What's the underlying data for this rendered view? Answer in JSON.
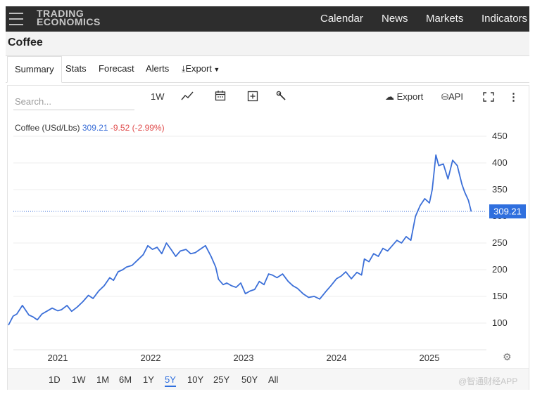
{
  "header": {
    "logo_line1": "TRADING",
    "logo_line2": "ECONOMICS",
    "nav": [
      "Calendar",
      "News",
      "Markets",
      "Indicators"
    ]
  },
  "page_title": "Coffee",
  "tabs": {
    "summary": "Summary",
    "stats": "Stats",
    "forecast": "Forecast",
    "alerts": "Alerts",
    "export": "Export"
  },
  "toolbar": {
    "search_placeholder": "Search...",
    "interval": "1W",
    "export": "Export",
    "api": "API"
  },
  "legend": {
    "name": "Coffee (USd/Lbs)",
    "price": "309.21",
    "change": "-9.52 (-2.99%)"
  },
  "ranges": [
    "1D",
    "1W",
    "1M",
    "6M",
    "1Y",
    "5Y",
    "10Y",
    "25Y",
    "50Y",
    "All"
  ],
  "active_range": "5Y",
  "watermark": "@智通财经APP",
  "colors": {
    "line": "#3b6fd8",
    "last_price_bg": "#2f6fde",
    "negative": "#e04b4b"
  },
  "chart_data": {
    "type": "line",
    "title": "Coffee (USd/Lbs)",
    "xlabel": "",
    "ylabel": "",
    "ylim": [
      50,
      470
    ],
    "y_ticks": [
      100,
      150,
      200,
      250,
      300,
      350,
      400,
      450
    ],
    "x_ticks": [
      "2021",
      "2022",
      "2023",
      "2024",
      "2025"
    ],
    "last_value": 309.21,
    "grid": true,
    "series": [
      {
        "x": [
          2020.47,
          2020.52,
          2020.56,
          2020.62,
          2020.69,
          2020.73,
          2020.78,
          2020.83,
          2020.88,
          2020.94,
          2021.0,
          2021.04,
          2021.1,
          2021.15,
          2021.21,
          2021.27,
          2021.33,
          2021.38,
          2021.44,
          2021.5,
          2021.56,
          2021.6,
          2021.65,
          2021.7,
          2021.74,
          2021.8,
          2021.86,
          2021.92,
          2021.97,
          2022.02,
          2022.07,
          2022.12,
          2022.17,
          2022.22,
          2022.27,
          2022.32,
          2022.38,
          2022.43,
          2022.48,
          2022.53,
          2022.59,
          2022.65,
          2022.7,
          2022.73,
          2022.78,
          2022.82,
          2022.87,
          2022.92,
          2022.97,
          2023.02,
          2023.07,
          2023.12,
          2023.17,
          2023.22,
          2023.27,
          2023.31,
          2023.36,
          2023.42,
          2023.48,
          2023.53,
          2023.58,
          2023.64,
          2023.7,
          2023.76,
          2023.82,
          2023.88,
          2023.94,
          2024.0,
          2024.05,
          2024.1,
          2024.16,
          2024.22,
          2024.27,
          2024.3,
          2024.35,
          2024.4,
          2024.45,
          2024.5,
          2024.55,
          2024.6,
          2024.65,
          2024.7,
          2024.75,
          2024.8,
          2024.85,
          2024.9,
          2024.95,
          2025.0,
          2025.03,
          2025.07,
          2025.1,
          2025.15,
          2025.2,
          2025.25,
          2025.3,
          2025.35,
          2025.38,
          2025.42,
          2025.45
        ],
        "y": [
          96,
          113,
          117,
          133,
          115,
          112,
          106,
          117,
          122,
          128,
          123,
          125,
          133,
          122,
          130,
          140,
          152,
          146,
          160,
          170,
          185,
          180,
          196,
          200,
          205,
          208,
          218,
          228,
          245,
          238,
          242,
          230,
          250,
          238,
          225,
          235,
          238,
          230,
          232,
          238,
          245,
          225,
          205,
          182,
          172,
          175,
          170,
          167,
          175,
          155,
          160,
          163,
          178,
          172,
          192,
          190,
          185,
          192,
          178,
          170,
          165,
          155,
          148,
          150,
          145,
          158,
          170,
          183,
          188,
          196,
          183,
          195,
          190,
          220,
          215,
          230,
          225,
          240,
          235,
          245,
          255,
          250,
          262,
          255,
          300,
          320,
          333,
          325,
          350,
          415,
          395,
          398,
          370,
          405,
          395,
          360,
          345,
          330,
          309
        ]
      }
    ]
  }
}
